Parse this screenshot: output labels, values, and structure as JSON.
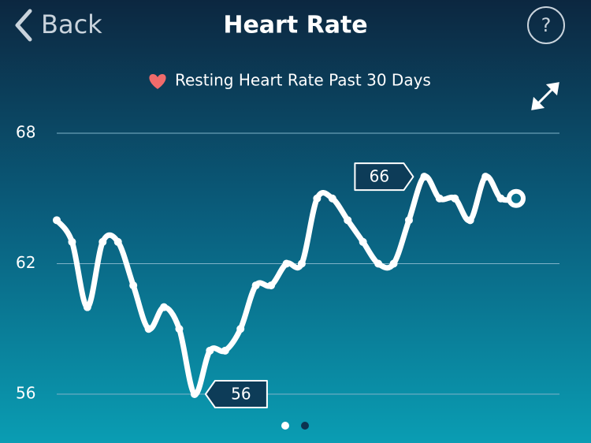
{
  "header": {
    "back": "Back",
    "title": "Heart Rate",
    "help": "?"
  },
  "chart_data": {
    "type": "line",
    "subtitle": "Resting Heart Rate Past 30 Days",
    "values": [
      64,
      63,
      60,
      63,
      63,
      61,
      59,
      60,
      59,
      56,
      58,
      58,
      59,
      61,
      61,
      62,
      62,
      65,
      65,
      64,
      63,
      62,
      62,
      64,
      66,
      65,
      65,
      64,
      66,
      65,
      65
    ],
    "color": "#ffffff",
    "ylim": [
      56,
      68
    ],
    "yticks": [
      56,
      62,
      68
    ],
    "grid": true
  }
}
